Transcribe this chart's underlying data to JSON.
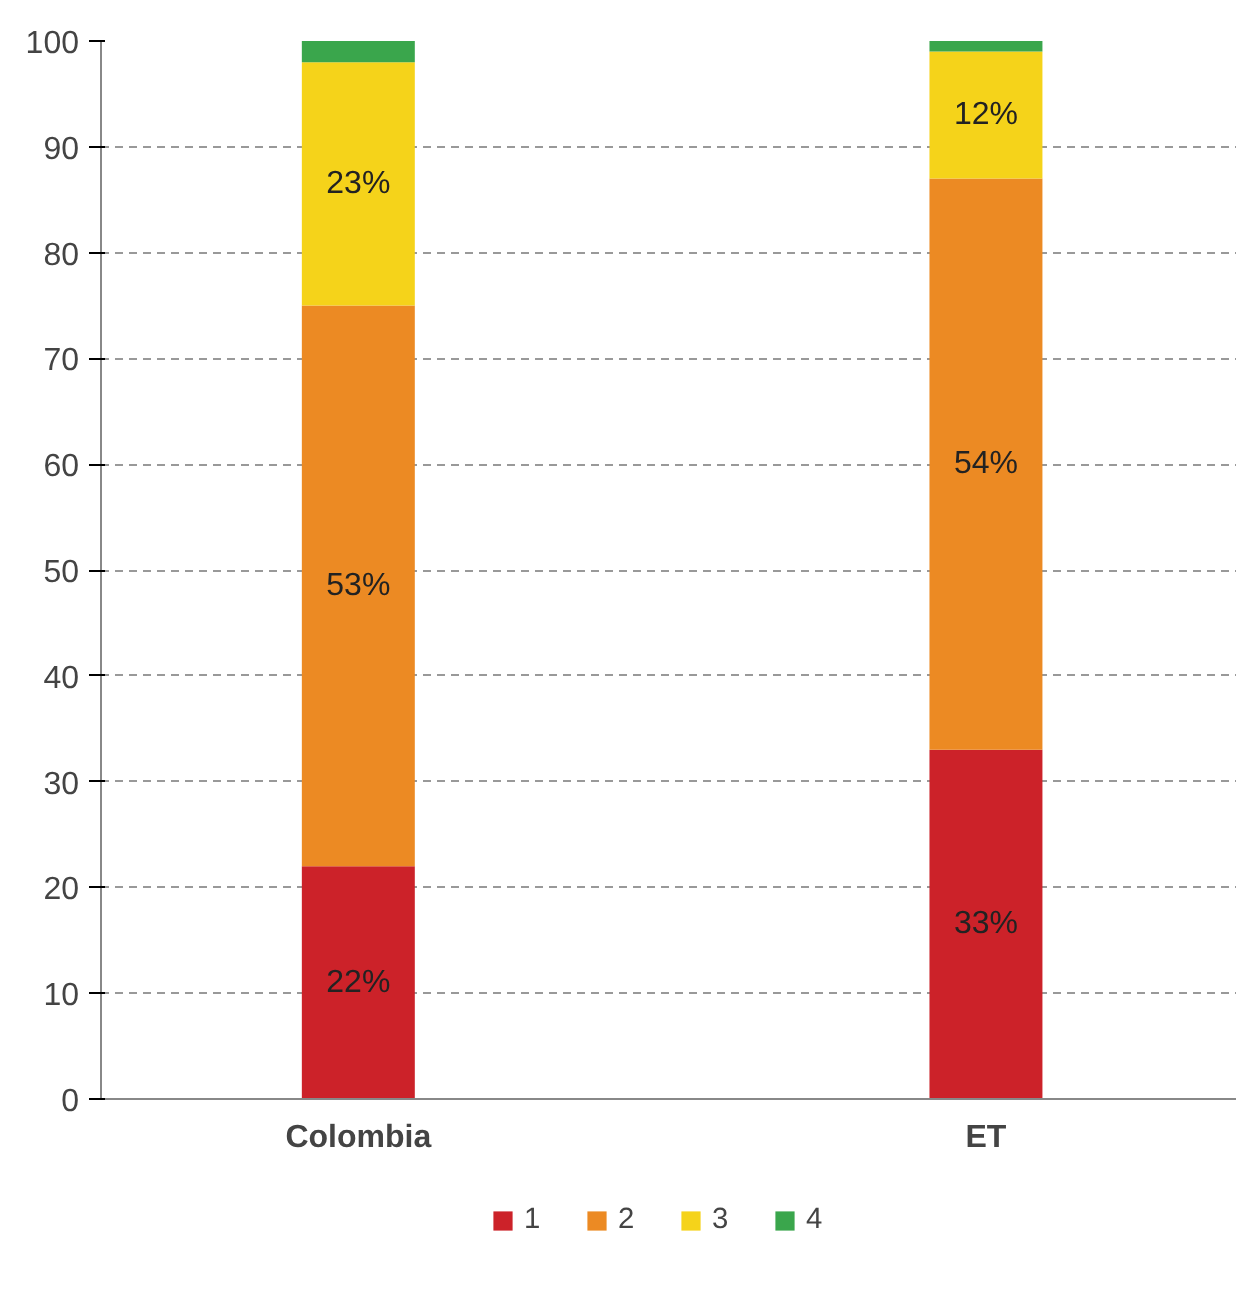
{
  "chart_data": {
    "type": "bar",
    "stacked": true,
    "categories": [
      "Colombia",
      "ET"
    ],
    "series": [
      {
        "name": "1",
        "color": "#cc2229",
        "values": [
          22,
          33
        ],
        "value_labels": [
          "22%",
          "33%"
        ]
      },
      {
        "name": "2",
        "color": "#ec8a23",
        "values": [
          53,
          54
        ],
        "value_labels": [
          "53%",
          "54%"
        ]
      },
      {
        "name": "3",
        "color": "#f5d31a",
        "values": [
          23,
          12
        ],
        "value_labels": [
          "23%",
          "12%"
        ]
      },
      {
        "name": "4",
        "color": "#3aa64c",
        "values": [
          2,
          1
        ],
        "value_labels": [
          null,
          null
        ]
      }
    ],
    "ylim": [
      0,
      100
    ],
    "yticks": [
      0,
      10,
      20,
      30,
      40,
      50,
      60,
      70,
      80,
      90,
      100
    ],
    "grid": "y",
    "legend": "bottom"
  }
}
